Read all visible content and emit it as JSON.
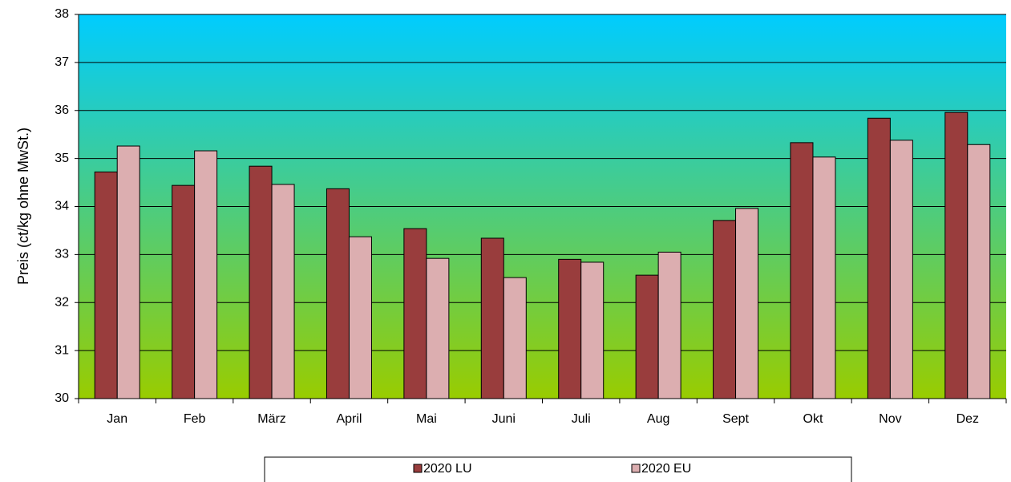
{
  "chart_data": {
    "type": "bar",
    "y_label": "Preis (ct/kg ohne MwSt.)",
    "categories": [
      "Jan",
      "Feb",
      "März",
      "April",
      "Mai",
      "Juni",
      "Juli",
      "Aug",
      "Sept",
      "Okt",
      "Nov",
      "Dez"
    ],
    "series": [
      {
        "name": "2020 LU",
        "color": "#993d3d",
        "values": [
          34.72,
          34.44,
          34.84,
          34.37,
          33.54,
          33.34,
          32.9,
          32.57,
          33.71,
          35.33,
          35.84,
          35.96
        ]
      },
      {
        "name": "2020 EU",
        "color": "#dcaeb0",
        "values": [
          35.26,
          35.16,
          34.46,
          33.37,
          32.92,
          32.52,
          32.84,
          33.05,
          33.96,
          35.03,
          35.38,
          35.29
        ]
      }
    ],
    "ylim": [
      30,
      38
    ],
    "yticks": [
      30,
      31,
      32,
      33,
      34,
      35,
      36,
      37,
      38
    ],
    "grid": true,
    "legend": "bottom"
  }
}
